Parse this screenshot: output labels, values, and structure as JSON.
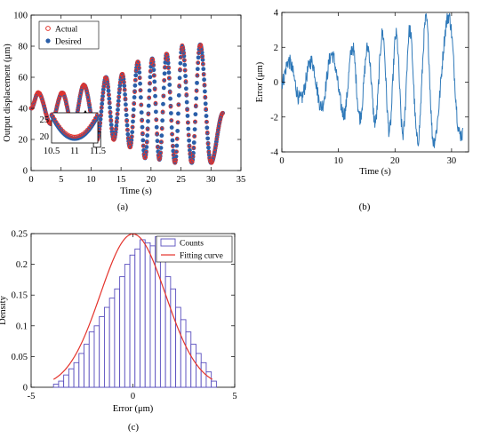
{
  "colors": {
    "actual": "#e4332c",
    "desired": "#2a5ea8",
    "error": "#2f79b9",
    "counts": "#5a4fbf",
    "fit": "#e4332c"
  },
  "panels": {
    "a": "(a)",
    "b": "(b)",
    "c": "(c)"
  },
  "chart_data": [
    {
      "type": "line",
      "panel": "(a)",
      "xlabel": "Time (s)",
      "ylabel": "Output displacement (μm)",
      "xlim": [
        0,
        35
      ],
      "ylim": [
        0,
        100
      ],
      "xticks": [
        0,
        5,
        10,
        15,
        20,
        25,
        30,
        35
      ],
      "yticks": [
        0,
        20,
        40,
        60,
        80,
        100
      ],
      "series": [
        {
          "name": "Actual",
          "marker": "open-circle"
        },
        {
          "name": "Desired",
          "marker": "filled-circle"
        }
      ],
      "peaks": [
        {
          "t": 1.2,
          "y": 50
        },
        {
          "t": 5.2,
          "y": 50
        },
        {
          "t": 8.8,
          "y": 55
        },
        {
          "t": 12.5,
          "y": 60
        },
        {
          "t": 15.2,
          "y": 62
        },
        {
          "t": 17.8,
          "y": 70
        },
        {
          "t": 20.2,
          "y": 72
        },
        {
          "t": 22.6,
          "y": 75
        },
        {
          "t": 25.2,
          "y": 80
        },
        {
          "t": 28.2,
          "y": 81
        }
      ],
      "troughs": [
        {
          "t": 0,
          "y": 40
        },
        {
          "t": 3.3,
          "y": 30
        },
        {
          "t": 7.0,
          "y": 28
        },
        {
          "t": 11.0,
          "y": 20
        },
        {
          "t": 13.8,
          "y": 20
        },
        {
          "t": 16.5,
          "y": 15
        },
        {
          "t": 19.0,
          "y": 8
        },
        {
          "t": 21.4,
          "y": 7
        },
        {
          "t": 24.0,
          "y": 5
        },
        {
          "t": 26.8,
          "y": 5
        },
        {
          "t": 30.0,
          "y": 5
        }
      ],
      "end": {
        "t": 32,
        "y": 37
      },
      "inset": {
        "xlim": [
          10.5,
          11.5
        ],
        "ylim": [
          18,
          27
        ],
        "xticks": [
          "10.5",
          "11",
          "11.5"
        ],
        "yticks": [
          "20",
          "25"
        ]
      }
    },
    {
      "type": "line",
      "panel": "(b)",
      "xlabel": "Time (s)",
      "ylabel": "Error (μm)",
      "xlim": [
        0,
        33
      ],
      "ylim": [
        -4,
        4
      ],
      "xticks": [
        0,
        10,
        20,
        30
      ],
      "yticks": [
        -4,
        -2,
        0,
        2,
        4
      ],
      "peaks": [
        {
          "t": 0,
          "y": 0
        },
        {
          "t": 1.2,
          "y": 1.2
        },
        {
          "t": 3.3,
          "y": -1.0
        },
        {
          "t": 5.2,
          "y": 1.2
        },
        {
          "t": 7.0,
          "y": -1.4
        },
        {
          "t": 8.8,
          "y": 1.6
        },
        {
          "t": 11.0,
          "y": -1.8
        },
        {
          "t": 12.5,
          "y": 2.0
        },
        {
          "t": 13.8,
          "y": -2.0
        },
        {
          "t": 15.2,
          "y": 2.0
        },
        {
          "t": 16.5,
          "y": -2.3
        },
        {
          "t": 17.8,
          "y": 2.8
        },
        {
          "t": 19.0,
          "y": -2.8
        },
        {
          "t": 20.2,
          "y": 2.7
        },
        {
          "t": 21.4,
          "y": -3.0
        },
        {
          "t": 22.6,
          "y": 3.0
        },
        {
          "t": 24.0,
          "y": -3.4
        },
        {
          "t": 25.5,
          "y": 3.6
        },
        {
          "t": 26.8,
          "y": -3.4
        },
        {
          "t": 29.5,
          "y": 3.8
        },
        {
          "t": 31.5,
          "y": -3.0
        },
        {
          "t": 32,
          "y": -3.0
        }
      ]
    },
    {
      "type": "bar",
      "panel": "(c)",
      "xlabel": "Error (μm)",
      "ylabel": "Density",
      "xlim": [
        -5,
        5
      ],
      "ylim": [
        0,
        0.25
      ],
      "xticks": [
        -5,
        0,
        5
      ],
      "yticks": [
        "0",
        "0.05",
        "0.1",
        "0.15",
        "0.2",
        "0.25"
      ],
      "bin_start": -3.9,
      "bin_width": 0.25,
      "densities": [
        0.005,
        0.01,
        0.02,
        0.03,
        0.04,
        0.055,
        0.07,
        0.09,
        0.1,
        0.115,
        0.13,
        0.145,
        0.16,
        0.18,
        0.2,
        0.215,
        0.225,
        0.24,
        0.235,
        0.23,
        0.245,
        0.22,
        0.18,
        0.16,
        0.13,
        0.11,
        0.09,
        0.07,
        0.055,
        0.04,
        0.025,
        0.01
      ],
      "fit": {
        "mean": 0,
        "sd": 1.6
      },
      "series": [
        {
          "name": "Counts"
        },
        {
          "name": "Fitting curve"
        }
      ]
    }
  ]
}
